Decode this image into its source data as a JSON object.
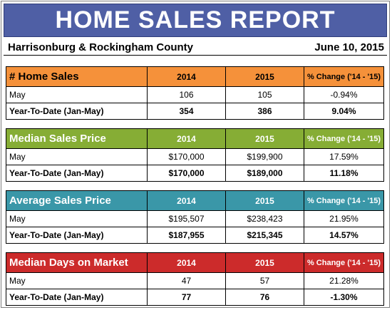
{
  "header": {
    "title": "HOME SALES REPORT",
    "region": "Harrisonburg & Rockingham County",
    "date": "June 10, 2015"
  },
  "colors": {
    "banner": "#4f5fa5",
    "home_sales": "#f5913a",
    "median_sales_price": "#86ad35",
    "average_sales_price": "#3a97a8",
    "median_days_on_market": "#cc2b2b"
  },
  "sections": [
    {
      "title": "# Home Sales",
      "col_2014": "2014",
      "col_2015": "2015",
      "col_change": "% Change ('14 - '15)",
      "rows": [
        {
          "label": "May",
          "v2014": "106",
          "v2015": "105",
          "change": "-0.94%"
        },
        {
          "label": "Year-To-Date (Jan-May)",
          "v2014": "354",
          "v2015": "386",
          "change": "9.04%"
        }
      ]
    },
    {
      "title": "Median Sales Price",
      "col_2014": "2014",
      "col_2015": "2015",
      "col_change": "% Change ('14 - '15)",
      "rows": [
        {
          "label": "May",
          "v2014": "$170,000",
          "v2015": "$199,900",
          "change": "17.59%"
        },
        {
          "label": "Year-To-Date (Jan-May)",
          "v2014": "$170,000",
          "v2015": "$189,000",
          "change": "11.18%"
        }
      ]
    },
    {
      "title": "Average Sales Price",
      "col_2014": "2014",
      "col_2015": "2015",
      "col_change": "% Change ('14 - '15)",
      "rows": [
        {
          "label": "May",
          "v2014": "$195,507",
          "v2015": "$238,423",
          "change": "21.95%"
        },
        {
          "label": "Year-To-Date (Jan-May)",
          "v2014": "$187,955",
          "v2015": "$215,345",
          "change": "14.57%"
        }
      ]
    },
    {
      "title": "Median Days on Market",
      "col_2014": "2014",
      "col_2015": "2015",
      "col_change": "% Change ('14 - '15)",
      "rows": [
        {
          "label": "May",
          "v2014": "47",
          "v2015": "57",
          "change": "21.28%"
        },
        {
          "label": "Year-To-Date (Jan-May)",
          "v2014": "77",
          "v2015": "76",
          "change": "-1.30%"
        }
      ]
    }
  ]
}
